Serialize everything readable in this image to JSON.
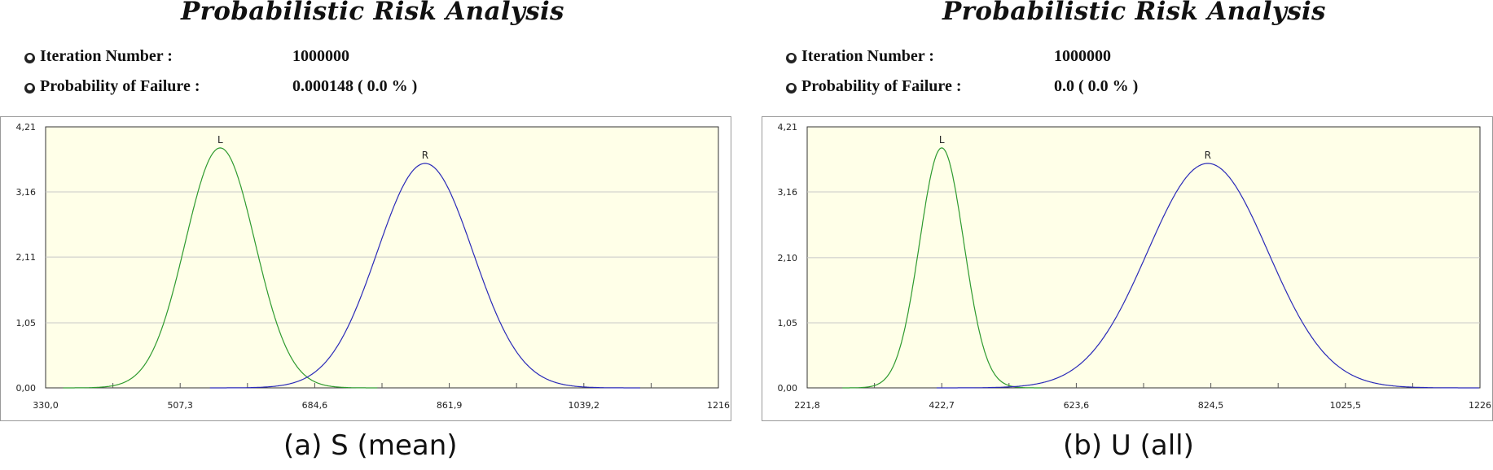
{
  "panels": [
    {
      "title": "Probabilistic Risk Analysis",
      "iteration_label": "Iteration Number :",
      "iteration_value": "1000000",
      "pof_label": "Probability of Failure :",
      "pof_value": "0.000148 ( 0.0 % )",
      "caption": "(a) S (mean)"
    },
    {
      "title": "Probabilistic Risk Analysis",
      "iteration_label": "Iteration Number :",
      "iteration_value": "1000000",
      "pof_label": "Probability of Failure :",
      "pof_value": "0.0 ( 0.0 % )",
      "caption": "(b) U (all)"
    }
  ],
  "colors": {
    "plot_background": "#ffffe8",
    "grid": "#c8c8c8",
    "load_curve": "#2e9a2e",
    "resistance_curve": "#2a2ab8"
  },
  "chart_data": [
    {
      "type": "line",
      "y_tick_labels": [
        "0,00",
        "1,05",
        "2,11",
        "3,16",
        "4,21"
      ],
      "y_ticks": [
        0,
        1.05,
        2.11,
        3.16,
        4.21
      ],
      "x_tick_labels": [
        "330,0",
        "507,3",
        "684,6",
        "861,9",
        "1039,2",
        "1216"
      ],
      "x_ticks": [
        330.0,
        507.3,
        684.6,
        861.9,
        1039.2,
        1216.5
      ],
      "xlim": [
        330.0,
        1216.5
      ],
      "ylim": [
        0,
        4.21
      ],
      "grid": true,
      "series": [
        {
          "name": "L",
          "color": "#2e9a2e",
          "mean": 560,
          "sd": 46,
          "peak": 3.87
        },
        {
          "name": "R",
          "color": "#2a2ab8",
          "mean": 830,
          "sd": 63,
          "peak": 3.62
        }
      ]
    },
    {
      "type": "line",
      "y_tick_labels": [
        "0,00",
        "1,05",
        "2,10",
        "3,16",
        "4,21"
      ],
      "y_ticks": [
        0,
        1.05,
        2.1,
        3.16,
        4.21
      ],
      "x_tick_labels": [
        "221,8",
        "422,7",
        "623,6",
        "824,5",
        "1025,5",
        "1226"
      ],
      "x_ticks": [
        221.8,
        422.7,
        623.6,
        824.5,
        1025.5,
        1226.4
      ],
      "xlim": [
        221.8,
        1226.4
      ],
      "ylim": [
        0,
        4.21
      ],
      "grid": true,
      "series": [
        {
          "name": "L",
          "color": "#2e9a2e",
          "mean": 422.7,
          "sd": 33,
          "peak": 3.87
        },
        {
          "name": "R",
          "color": "#2a2ab8",
          "mean": 820,
          "sd": 90,
          "peak": 3.62
        }
      ]
    }
  ]
}
